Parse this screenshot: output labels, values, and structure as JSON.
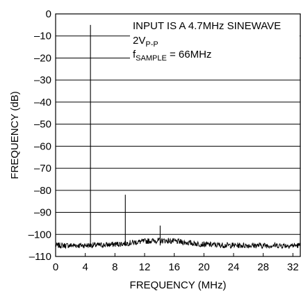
{
  "chart_data": {
    "type": "line",
    "title": "",
    "xlabel": "FREQUENCY (MHz)",
    "ylabel": "FREQUENCY (dB)",
    "xlim": [
      0,
      33
    ],
    "ylim": [
      -110,
      0
    ],
    "x_ticks": [
      0,
      4,
      8,
      12,
      16,
      20,
      24,
      28,
      32
    ],
    "x_tick_labels": [
      "0",
      "4",
      "8",
      "12",
      "16",
      "20",
      "24",
      "28",
      "32"
    ],
    "y_ticks": [
      0,
      -10,
      -20,
      -30,
      -40,
      -50,
      -60,
      -70,
      -80,
      -90,
      -100,
      -110
    ],
    "y_tick_labels": [
      "0",
      "–10",
      "–20",
      "–30",
      "–40",
      "–50",
      "–60",
      "–70",
      "–80",
      "–90",
      "–100",
      "–110"
    ],
    "grid": "horizontal",
    "legend": "none",
    "annotations": {
      "line1": "INPUT IS A 4.7MHz SINEWAVE",
      "line2_main": "2V",
      "line2_sub": "P-P",
      "line3_main": "f",
      "line3_sub": "SAMPLE",
      "line3_rest": " = 66MHz"
    },
    "noise_floor_db": -105,
    "spurs": [
      {
        "x": 4.7,
        "y": -5
      },
      {
        "x": 9.4,
        "y": -82
      },
      {
        "x": 14.1,
        "y": -96
      }
    ],
    "trace_color": "#000000"
  }
}
